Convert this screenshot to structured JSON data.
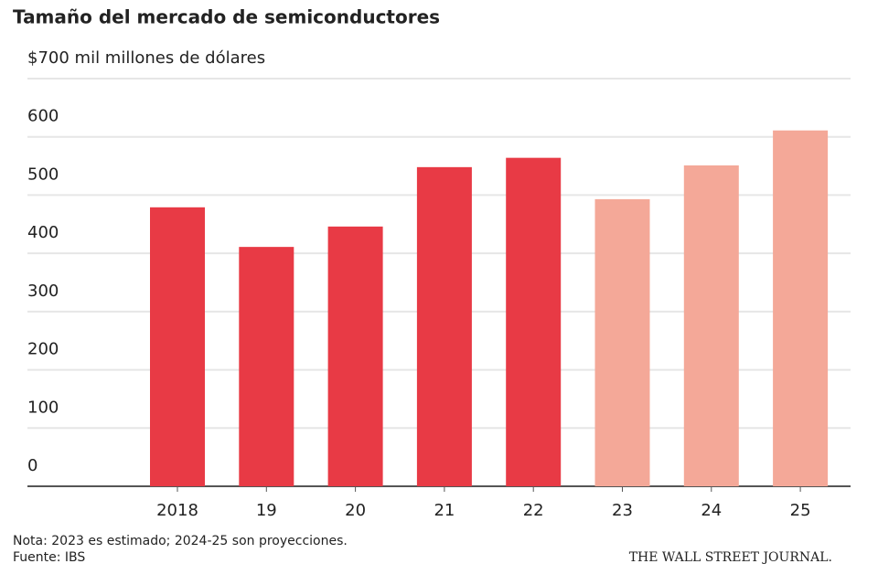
{
  "chart_data": {
    "type": "bar",
    "title": "Tamaño del mercado de semiconductores",
    "categories": [
      "2018",
      "19",
      "20",
      "21",
      "22",
      "23",
      "24",
      "25"
    ],
    "values": [
      479,
      411,
      446,
      548,
      564,
      493,
      551,
      611
    ],
    "colors": [
      "#e83a45",
      "#e83a45",
      "#e83a45",
      "#e83a45",
      "#e83a45",
      "#f4a898",
      "#f4a898",
      "#f4a898"
    ],
    "ylim": [
      0,
      700
    ],
    "yticks": [
      0,
      100,
      200,
      300,
      400,
      500,
      600,
      {
        "value": 700,
        "label": "$700 mil millones de dólares"
      }
    ],
    "grid": true,
    "note": "Nota: 2023 es estimado; 2024-25 son proyecciones.",
    "source": "Fuente: IBS",
    "credit": "THE WALL STREET JOURNAL."
  }
}
